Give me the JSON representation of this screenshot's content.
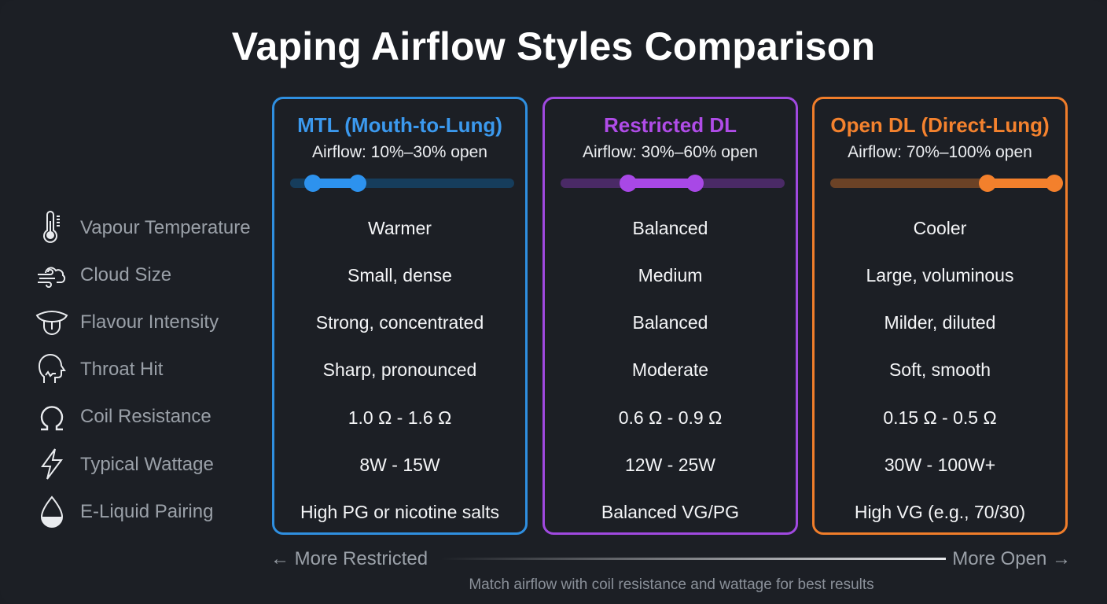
{
  "title": "Vaping Airflow Styles Comparison",
  "columns": [
    {
      "name": "MTL (Mouth-to-Lung)",
      "airflow": "Airflow: 10%–30% open",
      "range": [
        10,
        30
      ],
      "color": "#2d92ee",
      "values": [
        "Warmer",
        "Small, dense",
        "Strong, concentrated",
        "Sharp, pronounced",
        "1.0 Ω - 1.6 Ω",
        "8W - 15W",
        "High PG or nicotine salts"
      ]
    },
    {
      "name": "Restricted DL",
      "airflow": "Airflow: 30%–60% open",
      "range": [
        30,
        60
      ],
      "color": "#a848e6",
      "values": [
        "Balanced",
        "Medium",
        "Balanced",
        "Moderate",
        "0.6 Ω - 0.9 Ω",
        "12W - 25W",
        "Balanced VG/PG"
      ]
    },
    {
      "name": "Open DL (Direct-Lung)",
      "airflow": "Airflow: 70%–100% open",
      "range": [
        70,
        100
      ],
      "color": "#f3802c",
      "values": [
        "Cooler",
        "Large, voluminous",
        "Milder, diluted",
        "Soft, smooth",
        "0.15 Ω - 0.5 Ω",
        "30W - 100W+",
        "High VG (e.g., 70/30)"
      ]
    }
  ],
  "rows": [
    {
      "label": "Vapour Temperature",
      "icon": "thermometer-icon"
    },
    {
      "label": "Cloud Size",
      "icon": "cloud-wind-icon"
    },
    {
      "label": "Flavour Intensity",
      "icon": "tongue-icon"
    },
    {
      "label": "Throat Hit",
      "icon": "throat-icon"
    },
    {
      "label": "Coil Resistance",
      "icon": "ohm-icon"
    },
    {
      "label": "Typical Wattage",
      "icon": "lightning-icon"
    },
    {
      "label": "E-Liquid Pairing",
      "icon": "droplet-icon"
    }
  ],
  "scale": {
    "left": "← More Restricted",
    "right": "More Open →"
  },
  "footer": "Match airflow with coil resistance and wattage for best results"
}
